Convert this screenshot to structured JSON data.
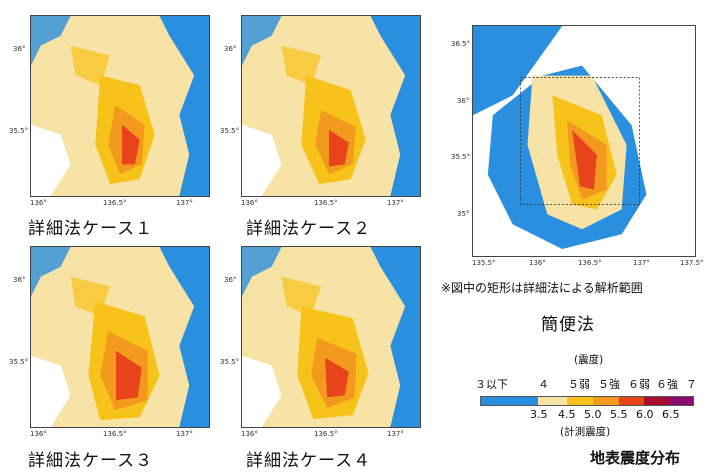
{
  "maps": [
    {
      "caption": "詳細法ケース１"
    },
    {
      "caption": "詳細法ケース２"
    },
    {
      "caption": "詳細法ケース３"
    },
    {
      "caption": "詳細法ケース４"
    }
  ],
  "detail_ticks": {
    "lon": [
      "136°",
      "136.5°",
      "137°"
    ],
    "lat": [
      "36°",
      "35.5°"
    ]
  },
  "simple_map": {
    "caption": "簡便法",
    "note": "※図中の矩形は詳細法による解析範囲",
    "lon_ticks": [
      "135.5°",
      "136°",
      "136.5°",
      "137°",
      "137.5°"
    ],
    "lat_ticks": [
      "36.5°",
      "36°",
      "35.5°",
      "35°"
    ]
  },
  "legend": {
    "title_top": "(震度)",
    "classes": [
      "３以下",
      "４",
      "５弱",
      "５強",
      "６弱",
      "６強",
      "７"
    ],
    "values": [
      "3.5",
      "4.5",
      "5.0",
      "5.5",
      "6.0",
      "6.5"
    ],
    "title_bottom": "(計測震度)",
    "colors": [
      "#2b8fe0",
      "#f7e3a6",
      "#f7c21a",
      "#f39a1e",
      "#e8441c",
      "#a6102e",
      "#8b0a6e"
    ]
  },
  "figure_title": "地表震度分布"
}
